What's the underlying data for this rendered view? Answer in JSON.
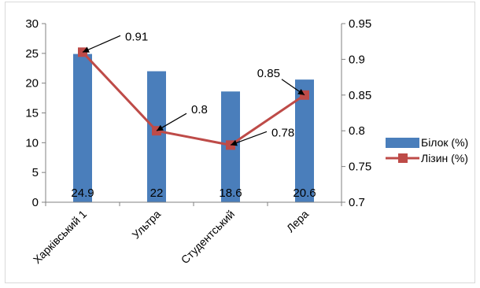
{
  "chart_data": {
    "type": "bar+line",
    "categories": [
      "Харківський 1",
      "Ультра",
      "Студентський",
      "Лера"
    ],
    "series": [
      {
        "name": "Білок (%)",
        "type": "bar",
        "axis": "left",
        "values": [
          24.9,
          22,
          18.6,
          20.6
        ],
        "color": "#4a7ebb"
      },
      {
        "name": "Лізин (%)",
        "type": "line",
        "axis": "right",
        "values": [
          0.91,
          0.8,
          0.78,
          0.85
        ],
        "color": "#be4b48"
      }
    ],
    "bar_labels": [
      "24.9",
      "22",
      "18.6",
      "20.6"
    ],
    "line_labels": [
      "0.91",
      "0.8",
      "0.78",
      "0.85"
    ],
    "y_left": {
      "min": 0,
      "max": 30,
      "step": 5,
      "ticks": [
        "0",
        "5",
        "10",
        "15",
        "20",
        "25",
        "30"
      ]
    },
    "y_right": {
      "min": 0.7,
      "max": 0.95,
      "step": 0.05,
      "ticks": [
        "0.7",
        "0.75",
        "0.8",
        "0.85",
        "0.9",
        "0.95"
      ]
    },
    "legend_position": "right",
    "grid": false
  }
}
